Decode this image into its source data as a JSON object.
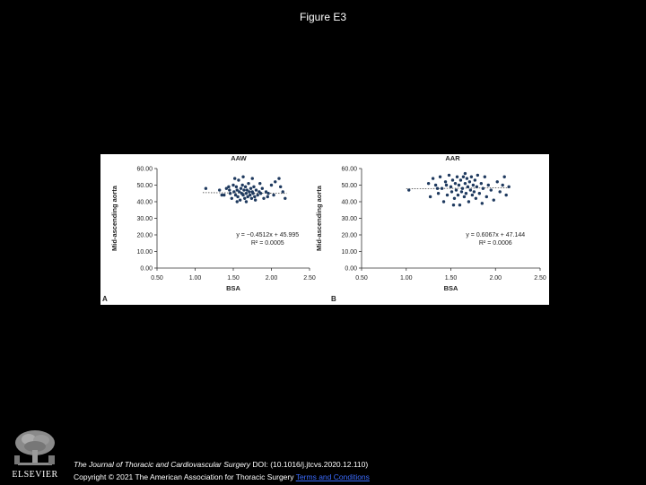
{
  "page": {
    "title": "Figure E3"
  },
  "footer": {
    "journal": "The Journal of Thoracic and Cardiovascular Surgery",
    "doi": " DOI: (10.1016/j.jtcvs.2020.12.110)",
    "copyright": "Copyright © 2021 The American Association for Thoracic Surgery ",
    "terms_link": "Terms and Conditions"
  },
  "logo": {
    "text": "ELSEVIER"
  },
  "chart_data": [
    {
      "type": "scatter",
      "panel_label": "A",
      "title": "AAW",
      "xlabel": "BSA",
      "ylabel": "Mid-ascending aorta",
      "xlim": [
        0.5,
        2.5
      ],
      "ylim": [
        0,
        60
      ],
      "xticks": [
        "0.50",
        "1.00",
        "1.50",
        "2.00",
        "2.50"
      ],
      "yticks": [
        "0.00",
        "10.00",
        "20.00",
        "30.00",
        "40.00",
        "50.00",
        "60.00"
      ],
      "equation": "y = −0.4512x + 45.995",
      "r2": "R² = 0.0005",
      "trend": {
        "slope": -0.4512,
        "intercept": 45.995,
        "x_range": [
          1.1,
          2.2
        ]
      },
      "points": [
        [
          1.14,
          48
        ],
        [
          1.32,
          47
        ],
        [
          1.38,
          44
        ],
        [
          1.41,
          48
        ],
        [
          1.45,
          47
        ],
        [
          1.46,
          45
        ],
        [
          1.48,
          42
        ],
        [
          1.5,
          50
        ],
        [
          1.51,
          46
        ],
        [
          1.53,
          44
        ],
        [
          1.54,
          49
        ],
        [
          1.55,
          47
        ],
        [
          1.56,
          43
        ],
        [
          1.57,
          53
        ],
        [
          1.58,
          46
        ],
        [
          1.59,
          41
        ],
        [
          1.6,
          48
        ],
        [
          1.61,
          45
        ],
        [
          1.62,
          50
        ],
        [
          1.63,
          44
        ],
        [
          1.64,
          47
        ],
        [
          1.65,
          42
        ],
        [
          1.66,
          49
        ],
        [
          1.67,
          45
        ],
        [
          1.68,
          47
        ],
        [
          1.69,
          43
        ],
        [
          1.7,
          51
        ],
        [
          1.71,
          46
        ],
        [
          1.72,
          44
        ],
        [
          1.73,
          48
        ],
        [
          1.74,
          42
        ],
        [
          1.75,
          46
        ],
        [
          1.76,
          45
        ],
        [
          1.77,
          49
        ],
        [
          1.78,
          43
        ],
        [
          1.8,
          47
        ],
        [
          1.82,
          44
        ],
        [
          1.84,
          46
        ],
        [
          1.86,
          45
        ],
        [
          1.88,
          48
        ],
        [
          1.9,
          42
        ],
        [
          1.93,
          46
        ],
        [
          1.96,
          45
        ],
        [
          2.0,
          50
        ],
        [
          2.03,
          44
        ],
        [
          2.05,
          52
        ],
        [
          2.1,
          54
        ],
        [
          2.15,
          46
        ],
        [
          2.18,
          42
        ],
        [
          1.52,
          54
        ],
        [
          1.63,
          55
        ],
        [
          1.75,
          54
        ],
        [
          1.55,
          40
        ],
        [
          1.67,
          40
        ],
        [
          1.79,
          41
        ],
        [
          1.35,
          44
        ],
        [
          2.12,
          49
        ],
        [
          1.95,
          43
        ],
        [
          1.85,
          51
        ],
        [
          1.44,
          49
        ]
      ]
    },
    {
      "type": "scatter",
      "panel_label": "B",
      "title": "AAR",
      "xlabel": "BSA",
      "ylabel": "Mid-ascending aorta",
      "xlim": [
        0.5,
        2.5
      ],
      "ylim": [
        0,
        60
      ],
      "xticks": [
        "0.50",
        "1.00",
        "1.50",
        "2.00",
        "2.50"
      ],
      "yticks": [
        "0.00",
        "10.00",
        "20.00",
        "30.00",
        "40.00",
        "50.00",
        "60.00"
      ],
      "equation": "y = 0.6067x + 47.144",
      "r2": "R² = 0.0006",
      "trend": {
        "slope": 0.6067,
        "intercept": 47.144,
        "x_range": [
          1.0,
          2.15
        ]
      },
      "points": [
        [
          1.03,
          47
        ],
        [
          1.27,
          43
        ],
        [
          1.3,
          54
        ],
        [
          1.33,
          50
        ],
        [
          1.36,
          45
        ],
        [
          1.38,
          55
        ],
        [
          1.4,
          48
        ],
        [
          1.42,
          40
        ],
        [
          1.44,
          52
        ],
        [
          1.46,
          44
        ],
        [
          1.48,
          56
        ],
        [
          1.5,
          49
        ],
        [
          1.51,
          46
        ],
        [
          1.52,
          53
        ],
        [
          1.54,
          42
        ],
        [
          1.55,
          51
        ],
        [
          1.56,
          47
        ],
        [
          1.57,
          55
        ],
        [
          1.58,
          44
        ],
        [
          1.59,
          50
        ],
        [
          1.6,
          38
        ],
        [
          1.61,
          53
        ],
        [
          1.62,
          46
        ],
        [
          1.63,
          48
        ],
        [
          1.64,
          55
        ],
        [
          1.65,
          43
        ],
        [
          1.66,
          51
        ],
        [
          1.67,
          45
        ],
        [
          1.68,
          54
        ],
        [
          1.69,
          49
        ],
        [
          1.7,
          40
        ],
        [
          1.71,
          52
        ],
        [
          1.72,
          47
        ],
        [
          1.73,
          55
        ],
        [
          1.74,
          44
        ],
        [
          1.75,
          50
        ],
        [
          1.76,
          46
        ],
        [
          1.77,
          53
        ],
        [
          1.78,
          42
        ],
        [
          1.79,
          49
        ],
        [
          1.8,
          56
        ],
        [
          1.82,
          45
        ],
        [
          1.84,
          51
        ],
        [
          1.86,
          48
        ],
        [
          1.88,
          55
        ],
        [
          1.9,
          43
        ],
        [
          1.92,
          50
        ],
        [
          1.95,
          47
        ],
        [
          1.98,
          41
        ],
        [
          2.02,
          52
        ],
        [
          2.05,
          46
        ],
        [
          2.08,
          50
        ],
        [
          2.1,
          55
        ],
        [
          2.12,
          44
        ],
        [
          2.15,
          49
        ],
        [
          1.45,
          50
        ],
        [
          1.53,
          38
        ],
        [
          1.66,
          57
        ],
        [
          1.85,
          39
        ],
        [
          1.35,
          48
        ],
        [
          1.25,
          51
        ]
      ]
    }
  ]
}
